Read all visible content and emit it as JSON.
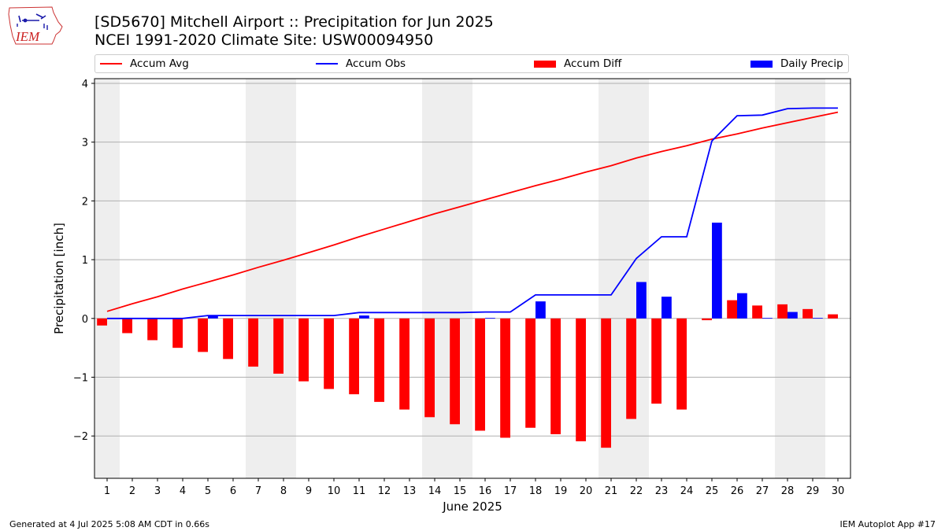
{
  "header": {
    "title_line1": "[SD5670] Mitchell Airport :: Precipitation for Jun 2025",
    "title_line2": "NCEI 1991-2020 Climate Site: USW00094950"
  },
  "logo": {
    "text": "IEM",
    "icon": "iem-iowa-weather-logo"
  },
  "legend": [
    {
      "label": "Accum Avg",
      "kind": "line",
      "color": "#ff0000"
    },
    {
      "label": "Accum Obs",
      "kind": "line",
      "color": "#0000ff"
    },
    {
      "label": "Accum Diff",
      "kind": "bar",
      "color": "#ff0000"
    },
    {
      "label": "Daily Precip",
      "kind": "bar",
      "color": "#0000ff"
    }
  ],
  "footer": {
    "left": "Generated at 4 Jul 2025 5:08 AM CDT in 0.66s",
    "right": "IEM Autoplot App #17"
  },
  "chart_data": {
    "type": "bar",
    "xlabel": "June 2025",
    "ylabel": "Precipitation [inch]",
    "xlim": [
      0.5,
      30.5
    ],
    "ylim": [
      -2.72,
      4.08
    ],
    "yticks": [
      -2,
      -1,
      0,
      1,
      2,
      3,
      4
    ],
    "grid": true,
    "legend_position": "top",
    "weekend_shading": [
      [
        0.5,
        1.5
      ],
      [
        6.5,
        8.5
      ],
      [
        13.5,
        15.5
      ],
      [
        20.5,
        22.5
      ],
      [
        27.5,
        29.5
      ]
    ],
    "x": [
      1,
      2,
      3,
      4,
      5,
      6,
      7,
      8,
      9,
      10,
      11,
      12,
      13,
      14,
      15,
      16,
      17,
      18,
      19,
      20,
      21,
      22,
      23,
      24,
      25,
      26,
      27,
      28,
      29,
      30
    ],
    "series": [
      {
        "name": "Accum Avg",
        "type": "line",
        "color": "#ff0000",
        "values": [
          0.12,
          0.25,
          0.37,
          0.5,
          0.62,
          0.74,
          0.87,
          0.99,
          1.12,
          1.25,
          1.39,
          1.52,
          1.65,
          1.78,
          1.9,
          2.02,
          2.14,
          2.26,
          2.37,
          2.49,
          2.6,
          2.73,
          2.84,
          2.94,
          3.05,
          3.14,
          3.24,
          3.33,
          3.42,
          3.51
        ]
      },
      {
        "name": "Accum Obs",
        "type": "line",
        "color": "#0000ff",
        "values": [
          0.0,
          0.0,
          0.0,
          0.0,
          0.05,
          0.05,
          0.05,
          0.05,
          0.05,
          0.05,
          0.1,
          0.1,
          0.1,
          0.1,
          0.1,
          0.11,
          0.11,
          0.4,
          0.4,
          0.4,
          0.4,
          1.02,
          1.39,
          1.39,
          3.02,
          3.45,
          3.46,
          3.57,
          3.58,
          3.58
        ]
      },
      {
        "name": "Accum Diff",
        "type": "bar",
        "color": "#ff0000",
        "values": [
          -0.12,
          -0.25,
          -0.37,
          -0.5,
          -0.57,
          -0.69,
          -0.82,
          -0.94,
          -1.07,
          -1.2,
          -1.29,
          -1.42,
          -1.55,
          -1.68,
          -1.8,
          -1.91,
          -2.03,
          -1.86,
          -1.97,
          -2.09,
          -2.2,
          -1.71,
          -1.45,
          -1.55,
          -0.03,
          0.31,
          0.22,
          0.24,
          0.16,
          0.07
        ]
      },
      {
        "name": "Daily Precip",
        "type": "bar",
        "color": "#0000ff",
        "values": [
          0.0,
          0.0,
          0.0,
          0.0,
          0.05,
          0.0,
          0.0,
          0.0,
          0.0,
          0.0,
          0.05,
          0.0,
          0.0,
          0.0,
          0.0,
          0.01,
          0.0,
          0.29,
          0.0,
          0.0,
          0.0,
          0.62,
          0.37,
          0.0,
          1.63,
          0.43,
          0.01,
          0.11,
          0.01,
          0.0
        ]
      }
    ]
  }
}
